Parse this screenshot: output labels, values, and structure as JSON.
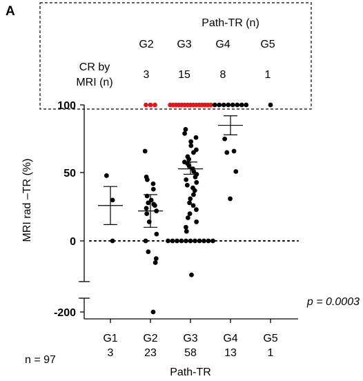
{
  "panel_label": "A",
  "inset": {
    "title": "Path-TR (n)",
    "row_label_lines": [
      "CR by",
      "MRI (n)"
    ],
    "groups": [
      "G2",
      "G3",
      "G4",
      "G5"
    ],
    "counts": [
      "3",
      "15",
      "8",
      "1"
    ]
  },
  "footer": {
    "n_total": "n = 97",
    "p_value": "p = 0.0003"
  },
  "colors": {
    "points": "#000000",
    "cr_highlight": "#e8131b",
    "dashed_box": "#000000"
  },
  "chart_data": {
    "type": "scatter",
    "xlabel": "Path-TR",
    "ylabel": "MRI rad –TR (%)",
    "categories": [
      "G1",
      "G2",
      "G3",
      "G4",
      "G5"
    ],
    "category_n": [
      "3",
      "23",
      "58",
      "13",
      "1"
    ],
    "y_axis": {
      "broken": true,
      "upper_ticks": [
        0,
        50,
        100
      ],
      "upper_tick_labels": [
        "0",
        "50",
        "100"
      ],
      "upper_range": [
        -40,
        100
      ],
      "lower_ticks": [
        -200
      ],
      "lower_tick_labels": [
        "-200"
      ]
    },
    "zero_reference_line": "dotted",
    "groups": [
      {
        "category": "G1",
        "mean": 26,
        "sem_upper": 40,
        "sem_lower": 12,
        "points": [
          48,
          30,
          0
        ]
      },
      {
        "category": "G2",
        "mean": 22,
        "sem_upper": 34,
        "sem_lower": 10,
        "points": [
          100,
          100,
          100,
          66,
          47,
          45,
          42,
          38,
          33,
          30,
          28,
          27,
          26,
          24,
          22,
          20,
          14,
          5,
          0,
          -8,
          -13,
          -16,
          -200
        ],
        "cr_count": 3
      },
      {
        "category": "G3",
        "mean": 53,
        "sem_upper": 58,
        "sem_lower": 49,
        "points": [
          100,
          100,
          100,
          100,
          100,
          100,
          100,
          100,
          100,
          100,
          100,
          100,
          100,
          100,
          100,
          82,
          79,
          76,
          73,
          70,
          67,
          65,
          62,
          60,
          58,
          57,
          55,
          53,
          51,
          49,
          47,
          45,
          43,
          41,
          39,
          37,
          34,
          31,
          28,
          26,
          23,
          20,
          17,
          14,
          10,
          7,
          0,
          0,
          0,
          0,
          0,
          0,
          0,
          0,
          0,
          0,
          0,
          -25
        ],
        "cr_count": 15
      },
      {
        "category": "G4",
        "mean": 85,
        "sem_upper": 92,
        "sem_lower": 78,
        "points": [
          100,
          100,
          100,
          100,
          100,
          100,
          100,
          100,
          75,
          66,
          65,
          51,
          31
        ],
        "cr_count": 8
      },
      {
        "category": "G5",
        "mean": null,
        "points": [
          100
        ],
        "cr_count": 1
      }
    ]
  }
}
